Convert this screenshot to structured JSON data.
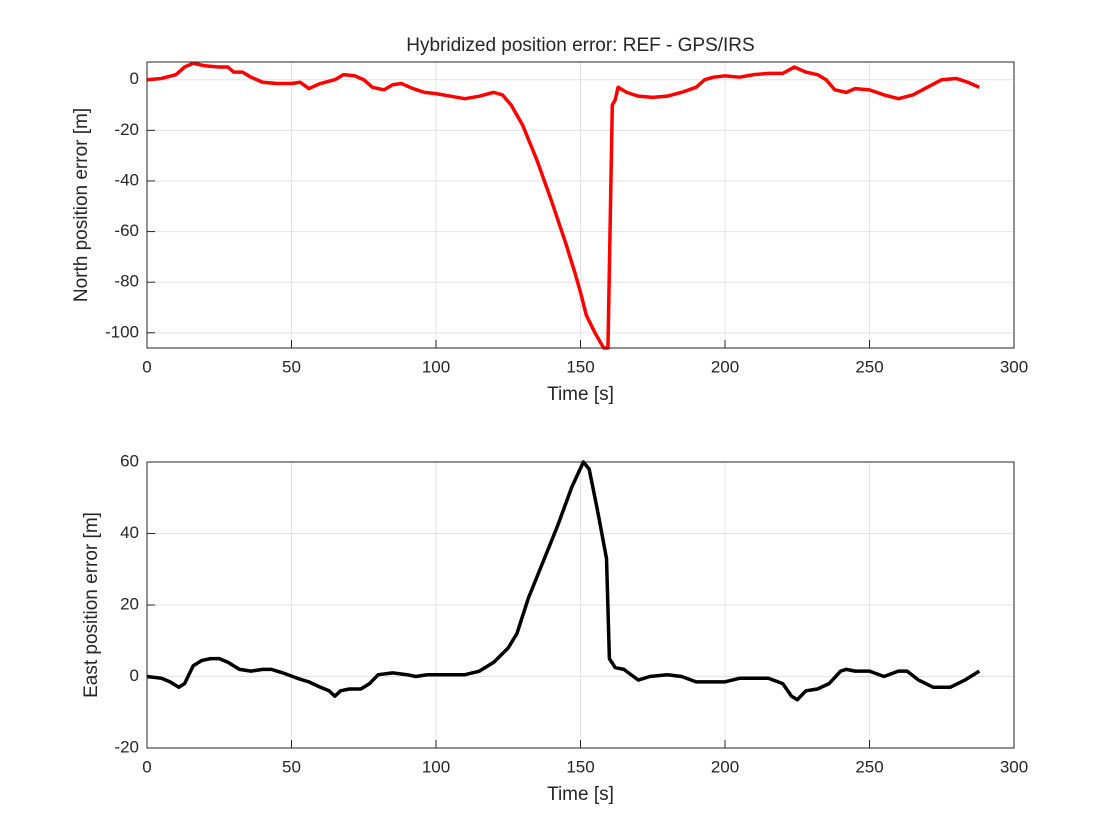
{
  "chart_data": [
    {
      "type": "line",
      "title": "Hybridized position error: REF - GPS/IRS",
      "xlabel": "Time [s]",
      "ylabel": "North position error [m]",
      "x": [
        0,
        5,
        10,
        13,
        16,
        20,
        25,
        28,
        30,
        33,
        36,
        40,
        45,
        50,
        53,
        56,
        60,
        65,
        68,
        72,
        75,
        78,
        82,
        85,
        88,
        92,
        96,
        100,
        105,
        110,
        115,
        120,
        123,
        126,
        130,
        135,
        140,
        145,
        148,
        150,
        152,
        155,
        158,
        159.5,
        161,
        162,
        163,
        166,
        170,
        175,
        180,
        185,
        190,
        193,
        196,
        200,
        205,
        210,
        215,
        220,
        224,
        228,
        232,
        235,
        238,
        242,
        245,
        250,
        255,
        260,
        265,
        270,
        275,
        280,
        284,
        288
      ],
      "values": [
        0,
        0.5,
        2,
        5,
        6.5,
        5.5,
        5,
        5,
        3,
        3,
        1,
        -1,
        -1.5,
        -1.5,
        -1,
        -3.5,
        -1.5,
        0,
        2,
        1.5,
        0,
        -3,
        -4,
        -2,
        -1.5,
        -3.5,
        -5,
        -5.5,
        -6.5,
        -7.5,
        -6.5,
        -5,
        -6,
        -10,
        -18,
        -32,
        -48,
        -65,
        -76,
        -84,
        -93,
        -100,
        -106,
        -106,
        -10,
        -8,
        -3,
        -5,
        -6.5,
        -7,
        -6.5,
        -5,
        -3,
        0,
        1,
        1.5,
        1,
        2,
        2.5,
        2.5,
        5,
        3,
        2,
        0,
        -4,
        -5,
        -3.5,
        -4,
        -6,
        -7.5,
        -6,
        -3,
        0,
        0.5,
        -1,
        -3
      ],
      "color": "#ff0000",
      "xlim": [
        0,
        300
      ],
      "ylim": [
        -106,
        7
      ],
      "xticks": [
        0,
        50,
        100,
        150,
        200,
        250,
        300
      ],
      "yticks": [
        -100,
        -80,
        -60,
        -40,
        -20,
        0
      ],
      "grid": true
    },
    {
      "type": "line",
      "xlabel": "Time [s]",
      "ylabel": "East position error [m]",
      "x": [
        0,
        5,
        8,
        11,
        13,
        16,
        19,
        22,
        25,
        28,
        32,
        36,
        40,
        43,
        47,
        52,
        56,
        60,
        63,
        65,
        67,
        70,
        74,
        77,
        80,
        85,
        90,
        93,
        97,
        100,
        105,
        110,
        115,
        120,
        125,
        128,
        132,
        137,
        142,
        147,
        151,
        153,
        156,
        159,
        160,
        162,
        165,
        170,
        174,
        180,
        185,
        190,
        195,
        200,
        205,
        210,
        215,
        220,
        223,
        225,
        228,
        232,
        236,
        240,
        242,
        245,
        250,
        255,
        260,
        263,
        267,
        272,
        278,
        283,
        288
      ],
      "values": [
        0,
        -0.5,
        -1.5,
        -3,
        -2,
        3,
        4.5,
        5,
        5,
        4,
        2,
        1.5,
        2,
        2,
        1,
        -0.5,
        -1.5,
        -3,
        -4,
        -5.5,
        -4,
        -3.5,
        -3.5,
        -2,
        0.5,
        1,
        0.5,
        0,
        0.5,
        0.5,
        0.5,
        0.5,
        1.5,
        4,
        8,
        12,
        22,
        32,
        42,
        53,
        60,
        58,
        46,
        33,
        5,
        2.5,
        2,
        -1,
        0,
        0.5,
        0,
        -1.5,
        -1.5,
        -1.5,
        -0.5,
        -0.5,
        -0.5,
        -2,
        -5.5,
        -6.5,
        -4,
        -3.5,
        -2,
        1.5,
        2,
        1.5,
        1.5,
        0,
        1.5,
        1.5,
        -1,
        -3,
        -3,
        -1,
        1.5
      ],
      "color": "#000000",
      "xlim": [
        0,
        300
      ],
      "ylim": [
        -20,
        60
      ],
      "xticks": [
        0,
        50,
        100,
        150,
        200,
        250,
        300
      ],
      "yticks": [
        -20,
        0,
        20,
        40,
        60
      ],
      "grid": true
    }
  ]
}
